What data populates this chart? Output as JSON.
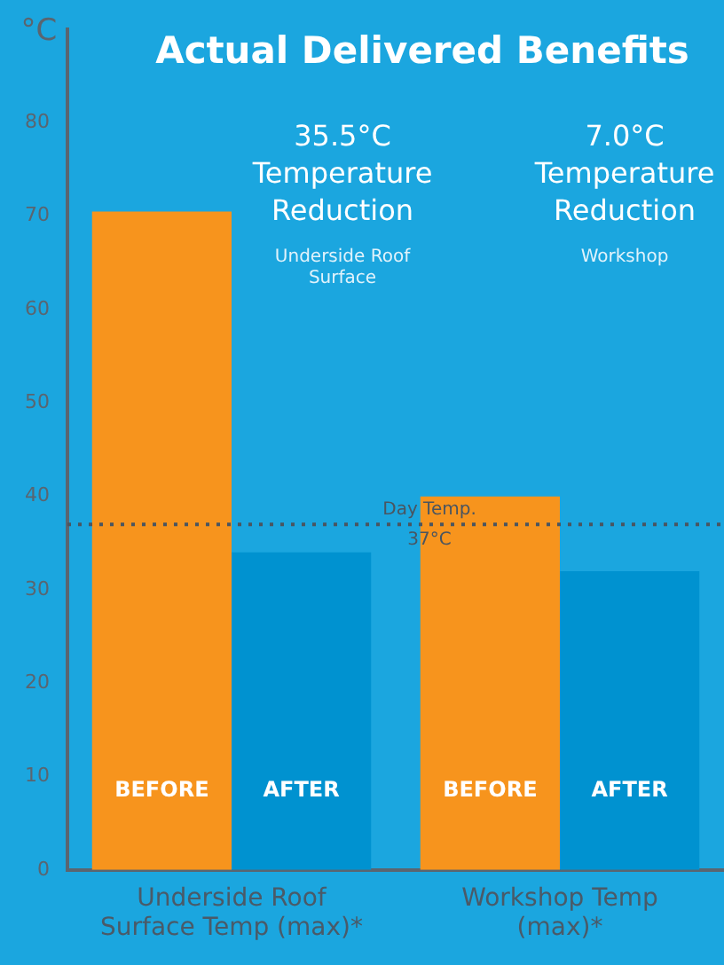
{
  "chart_data": {
    "type": "bar",
    "title": "Actual Delivered Benefits",
    "ylabel": "°C",
    "categories": [
      "Underside Roof Surface Temp (max)*",
      "Workshop Temp (max)*"
    ],
    "series": [
      {
        "name": "BEFORE",
        "color": "#f7941d",
        "values": [
          70.5,
          40
        ]
      },
      {
        "name": "AFTER",
        "color": "#0092d0",
        "values": [
          34,
          32
        ]
      }
    ],
    "ylim": [
      0,
      90
    ],
    "yticks": [
      0,
      10,
      20,
      30,
      40,
      50,
      60,
      70,
      80
    ],
    "grid": false,
    "legend": false,
    "ref_lines": [
      {
        "axis": "y",
        "value": 37,
        "label": "Day Temp. 37°C",
        "line_style": "dotted",
        "color": "#4a5560"
      }
    ],
    "annotations": [
      "35.5°C Temperature Reduction",
      "Underside Roof Surface",
      "7.0°C Temperature Reduction",
      "Workshop"
    ]
  }
}
